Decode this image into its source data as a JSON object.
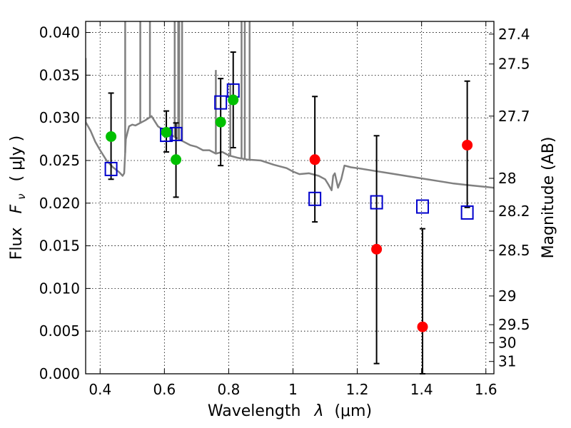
{
  "chart_data": {
    "type": "scatter",
    "xlabel": "Wavelength",
    "xlabel_unit": "(μm)",
    "xlabel_symbol": "λ",
    "ylabel": "Flux",
    "ylabel_symbol": "F",
    "ylabel_symbol_sub": "ν",
    "ylabel_unit": "( μJy )",
    "y2label": "Magnitude (AB)",
    "xlim": [
      0.355,
      1.625
    ],
    "ylim": [
      0.0,
      0.0413
    ],
    "grid": true,
    "x_ticks": [
      0.4,
      0.6,
      0.8,
      1.0,
      1.2,
      1.4,
      1.6
    ],
    "x_tick_labels": [
      "0.4",
      "0.6",
      "0.8",
      "1",
      "1.2",
      "1.4",
      "1.6"
    ],
    "y_ticks": [
      0.0,
      0.005,
      0.01,
      0.015,
      0.02,
      0.025,
      0.03,
      0.035,
      0.04
    ],
    "y_tick_labels": [
      "0.000",
      "0.005",
      "0.010",
      "0.015",
      "0.020",
      "0.025",
      "0.030",
      "0.035",
      "0.040"
    ],
    "y2_ticks": [
      27.4,
      27.5,
      27.7,
      28,
      28.2,
      28.5,
      29,
      29.5,
      30,
      31
    ],
    "y2_tick_labels": [
      "27.4",
      "27.5",
      "27.7",
      "28",
      "28.2",
      "28.5",
      "29",
      "29.5",
      "30",
      "31"
    ],
    "series": [
      {
        "marker": "circle",
        "color": "#00c000",
        "points": [
          {
            "x": 0.434,
            "y": 0.0278,
            "err_lo": 0.0228,
            "err_hi": 0.0329
          },
          {
            "x": 0.606,
            "y": 0.0283,
            "err_lo": 0.026,
            "err_hi": 0.0308
          },
          {
            "x": 0.636,
            "y": 0.0251,
            "err_lo": 0.0207,
            "err_hi": 0.0294
          },
          {
            "x": 0.775,
            "y": 0.0295,
            "err_lo": 0.0244,
            "err_hi": 0.0346
          },
          {
            "x": 0.814,
            "y": 0.0321,
            "err_lo": 0.0265,
            "err_hi": 0.0377
          }
        ]
      },
      {
        "marker": "circle",
        "color": "#ff0000",
        "points": [
          {
            "x": 1.068,
            "y": 0.0251,
            "err_lo": 0.0178,
            "err_hi": 0.0325
          },
          {
            "x": 1.26,
            "y": 0.0146,
            "err_lo": 0.0012,
            "err_hi": 0.0279
          },
          {
            "x": 1.403,
            "y": 0.0055,
            "err_lo": 0.0,
            "err_hi": 0.017
          },
          {
            "x": 1.542,
            "y": 0.0268,
            "err_lo": 0.0195,
            "err_hi": 0.0343
          }
        ]
      },
      {
        "marker": "open-square",
        "color": "#0000cc",
        "points": [
          {
            "x": 0.434,
            "y": 0.024
          },
          {
            "x": 0.606,
            "y": 0.028
          },
          {
            "x": 0.636,
            "y": 0.0281
          },
          {
            "x": 0.775,
            "y": 0.0318
          },
          {
            "x": 0.814,
            "y": 0.0332
          },
          {
            "x": 1.068,
            "y": 0.0205
          },
          {
            "x": 1.26,
            "y": 0.0201
          },
          {
            "x": 1.403,
            "y": 0.0196
          },
          {
            "x": 1.542,
            "y": 0.0189
          }
        ]
      },
      {
        "marker": "line",
        "color": "#808080",
        "points": [
          [
            0.355,
            0.0295
          ],
          [
            0.37,
            0.0285
          ],
          [
            0.385,
            0.0272
          ],
          [
            0.4,
            0.0262
          ],
          [
            0.42,
            0.025
          ],
          [
            0.44,
            0.0242
          ],
          [
            0.46,
            0.0236
          ],
          [
            0.47,
            0.0232
          ],
          [
            0.475,
            0.0235
          ],
          [
            0.48,
            0.0275
          ],
          [
            0.49,
            0.029
          ],
          [
            0.5,
            0.0292
          ],
          [
            0.51,
            0.0291
          ],
          [
            0.52,
            0.0293
          ],
          [
            0.54,
            0.0297
          ],
          [
            0.56,
            0.0302
          ],
          [
            0.58,
            0.029
          ],
          [
            0.6,
            0.0285
          ],
          [
            0.62,
            0.028
          ],
          [
            0.64,
            0.0276
          ],
          [
            0.66,
            0.0272
          ],
          [
            0.68,
            0.0268
          ],
          [
            0.7,
            0.0266
          ],
          [
            0.72,
            0.0262
          ],
          [
            0.74,
            0.0262
          ],
          [
            0.76,
            0.0258
          ],
          [
            0.78,
            0.026
          ],
          [
            0.8,
            0.0256
          ],
          [
            0.83,
            0.0253
          ],
          [
            0.86,
            0.0251
          ],
          [
            0.9,
            0.025
          ],
          [
            0.94,
            0.0245
          ],
          [
            0.98,
            0.0241
          ],
          [
            1.0,
            0.0237
          ],
          [
            1.02,
            0.0234
          ],
          [
            1.05,
            0.0235
          ],
          [
            1.08,
            0.0232
          ],
          [
            1.1,
            0.0228
          ],
          [
            1.11,
            0.0222
          ],
          [
            1.12,
            0.0215
          ],
          [
            1.125,
            0.0232
          ],
          [
            1.13,
            0.0235
          ],
          [
            1.14,
            0.0218
          ],
          [
            1.15,
            0.0228
          ],
          [
            1.16,
            0.0244
          ],
          [
            1.18,
            0.0242
          ],
          [
            1.2,
            0.0241
          ],
          [
            1.25,
            0.0238
          ],
          [
            1.3,
            0.0235
          ],
          [
            1.35,
            0.0232
          ],
          [
            1.4,
            0.0229
          ],
          [
            1.45,
            0.0226
          ],
          [
            1.5,
            0.0223
          ],
          [
            1.55,
            0.0221
          ],
          [
            1.6,
            0.0219
          ],
          [
            1.625,
            0.0218
          ]
        ],
        "spikes": [
          [
            0.355,
            0.037
          ],
          [
            0.478,
            0.0413
          ],
          [
            0.525,
            0.0413
          ],
          [
            0.555,
            0.0413
          ],
          [
            0.632,
            0.0413
          ],
          [
            0.643,
            0.0413
          ],
          [
            0.646,
            0.0413
          ],
          [
            0.655,
            0.0413
          ],
          [
            0.76,
            0.0356
          ],
          [
            0.805,
            0.034
          ],
          [
            0.84,
            0.0413
          ],
          [
            0.85,
            0.0413
          ],
          [
            0.865,
            0.0413
          ]
        ]
      }
    ]
  }
}
